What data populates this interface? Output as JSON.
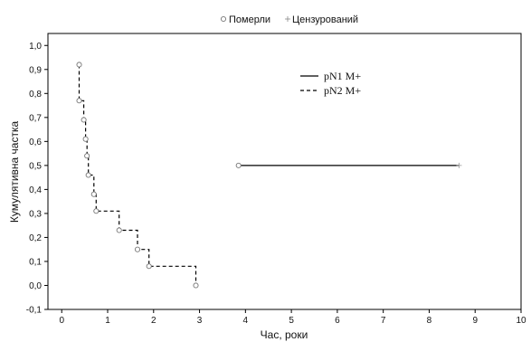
{
  "chart_data": {
    "type": "line",
    "xlabel": "Час, роки",
    "ylabel": "Кумулятивна частка",
    "xlim": [
      -0.3,
      10
    ],
    "ylim": [
      -0.1,
      1.05
    ],
    "x_ticks": [
      0,
      1,
      2,
      3,
      4,
      5,
      6,
      7,
      8,
      9,
      10
    ],
    "y_ticks": [
      -0.1,
      0.0,
      0.1,
      0.2,
      0.3,
      0.4,
      0.5,
      0.6,
      0.7,
      0.8,
      0.9,
      1.0
    ],
    "y_tick_labels": [
      "-0,1",
      "0,0",
      "0,1",
      "0,2",
      "0,3",
      "0,4",
      "0,5",
      "0,6",
      "0,7",
      "0,8",
      "0,9",
      "1,0"
    ],
    "grid": false,
    "marker_legend": {
      "placement": "top-center",
      "items": [
        {
          "label": "Померли",
          "marker": "open-circle"
        },
        {
          "label": "Цензурований",
          "marker": "plus"
        }
      ]
    },
    "series_legend": {
      "placement": "top-right",
      "items": [
        {
          "label": "pN1 M+",
          "style": "solid"
        },
        {
          "label": "pN2 M+",
          "style": "dashed"
        }
      ]
    },
    "series": [
      {
        "name": "pN1 M+",
        "style": "solid",
        "color": "#000000",
        "steps": [
          [
            3.85,
            0.5
          ],
          [
            8.65,
            0.5
          ]
        ],
        "events": [
          [
            3.85,
            0.5
          ]
        ],
        "censored": [
          [
            8.65,
            0.5
          ]
        ]
      },
      {
        "name": "pN2 M+",
        "style": "dashed",
        "color": "#000000",
        "steps": [
          [
            0.38,
            0.92
          ],
          [
            0.38,
            0.77
          ],
          [
            0.48,
            0.77
          ],
          [
            0.48,
            0.69
          ],
          [
            0.52,
            0.69
          ],
          [
            0.52,
            0.61
          ],
          [
            0.55,
            0.61
          ],
          [
            0.55,
            0.54
          ],
          [
            0.58,
            0.54
          ],
          [
            0.58,
            0.46
          ],
          [
            0.7,
            0.46
          ],
          [
            0.7,
            0.38
          ],
          [
            0.75,
            0.38
          ],
          [
            0.75,
            0.31
          ],
          [
            1.25,
            0.31
          ],
          [
            1.25,
            0.23
          ],
          [
            1.65,
            0.23
          ],
          [
            1.65,
            0.15
          ],
          [
            1.9,
            0.15
          ],
          [
            1.9,
            0.08
          ],
          [
            2.92,
            0.08
          ],
          [
            2.92,
            0.0
          ]
        ],
        "events": [
          [
            0.38,
            0.92
          ],
          [
            0.38,
            0.77
          ],
          [
            0.48,
            0.69
          ],
          [
            0.52,
            0.61
          ],
          [
            0.55,
            0.54
          ],
          [
            0.58,
            0.46
          ],
          [
            0.7,
            0.38
          ],
          [
            0.75,
            0.31
          ],
          [
            1.25,
            0.23
          ],
          [
            1.65,
            0.15
          ],
          [
            1.9,
            0.08
          ],
          [
            2.92,
            0.0
          ]
        ],
        "censored": []
      }
    ]
  }
}
